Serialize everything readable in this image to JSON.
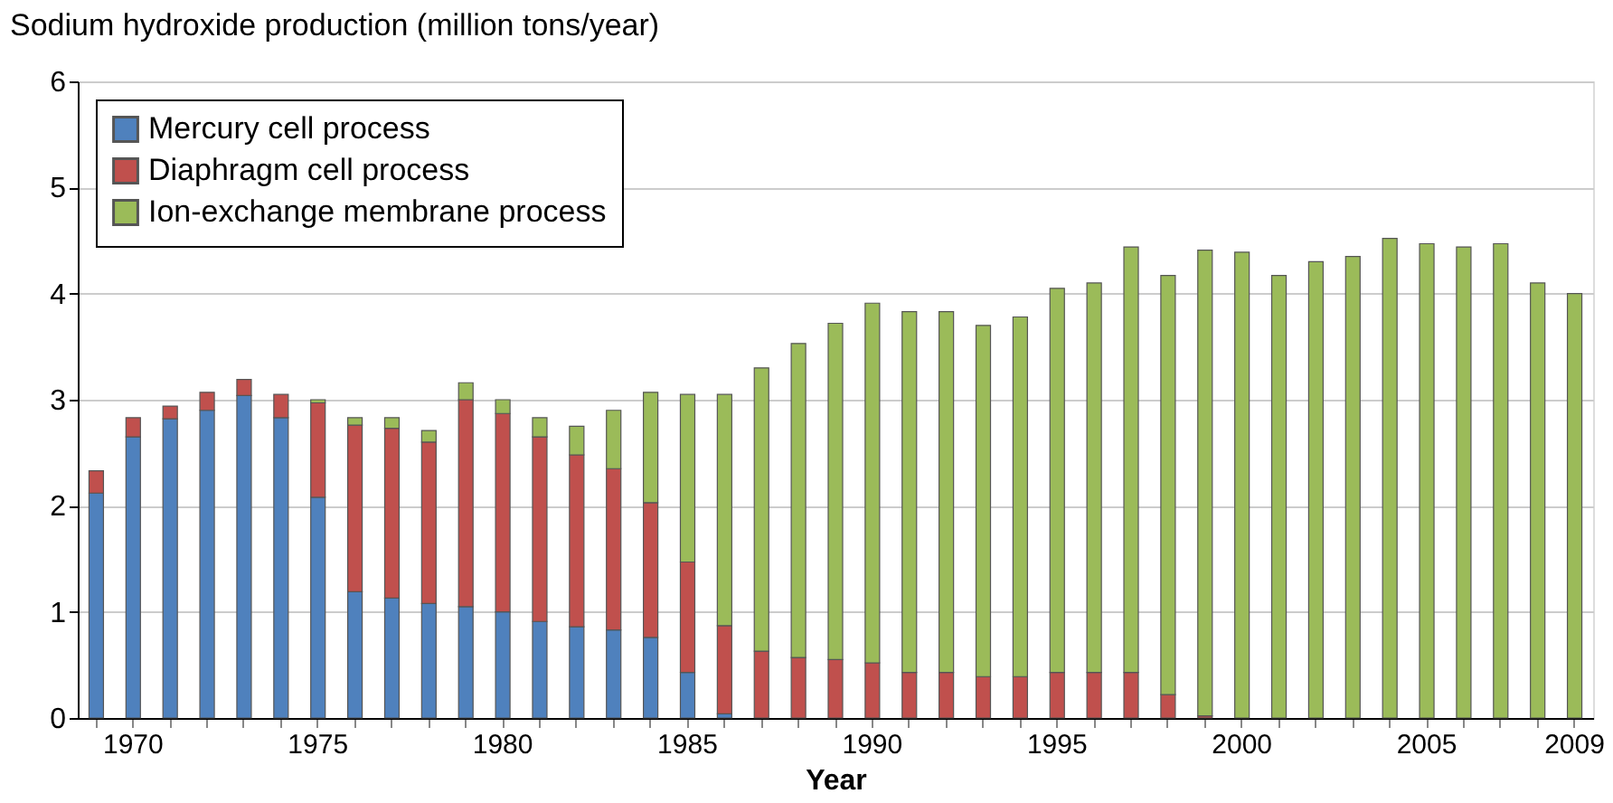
{
  "chart_data": {
    "type": "bar",
    "stacked": true,
    "xlabel": "Year",
    "ylabel": "Sodium hydroxide production (million tons/year)",
    "categories": [
      null,
      "1970",
      null,
      null,
      null,
      null,
      "1975",
      null,
      null,
      null,
      null,
      "1980",
      null,
      null,
      null,
      null,
      "1985",
      null,
      null,
      null,
      null,
      "1990",
      null,
      null,
      null,
      null,
      "1995",
      null,
      null,
      null,
      null,
      "2000",
      null,
      null,
      null,
      null,
      "2005",
      null,
      null,
      null,
      "2009"
    ],
    "series": [
      {
        "name": "Mercury cell process",
        "color": "#4f81bd",
        "values": [
          2.12,
          2.65,
          2.82,
          2.9,
          3.04,
          2.83,
          2.08,
          1.19,
          1.13,
          1.08,
          1.05,
          1.0,
          0.91,
          0.86,
          0.83,
          0.76,
          0.43,
          0.04,
          null,
          null,
          null,
          null,
          null,
          null,
          null,
          null,
          null,
          null,
          null,
          null,
          null,
          null,
          null,
          null,
          null,
          null,
          null,
          null,
          null,
          null,
          null
        ]
      },
      {
        "name": "Diaphragm cell process",
        "color": "#c0504d",
        "values": [
          0.21,
          0.18,
          0.12,
          0.17,
          0.15,
          0.22,
          0.89,
          1.57,
          1.6,
          1.52,
          1.95,
          1.87,
          1.74,
          1.62,
          1.52,
          1.27,
          1.04,
          0.83,
          0.63,
          0.57,
          0.55,
          0.52,
          0.43,
          0.43,
          0.39,
          0.39,
          0.43,
          0.43,
          0.43,
          0.22,
          0.02,
          null,
          null,
          null,
          null,
          null,
          null,
          null,
          null,
          null,
          null
        ]
      },
      {
        "name": "Ion-exchange membrane process",
        "color": "#9bbb59",
        "values": [
          null,
          null,
          null,
          null,
          null,
          null,
          0.03,
          0.07,
          0.1,
          0.11,
          0.16,
          0.13,
          0.18,
          0.27,
          0.55,
          1.04,
          1.58,
          2.18,
          2.67,
          2.96,
          3.17,
          3.39,
          3.4,
          3.4,
          3.31,
          3.39,
          3.62,
          3.67,
          4.01,
          3.95,
          4.39,
          4.39,
          4.17,
          4.3,
          4.35,
          4.52,
          4.47,
          4.44,
          4.47,
          4.1,
          4.0
        ]
      }
    ],
    "ylim": [
      0,
      6
    ],
    "yticks": [
      0,
      1,
      2,
      3,
      4,
      5,
      6
    ],
    "grid": "y",
    "legend": "top left"
  }
}
